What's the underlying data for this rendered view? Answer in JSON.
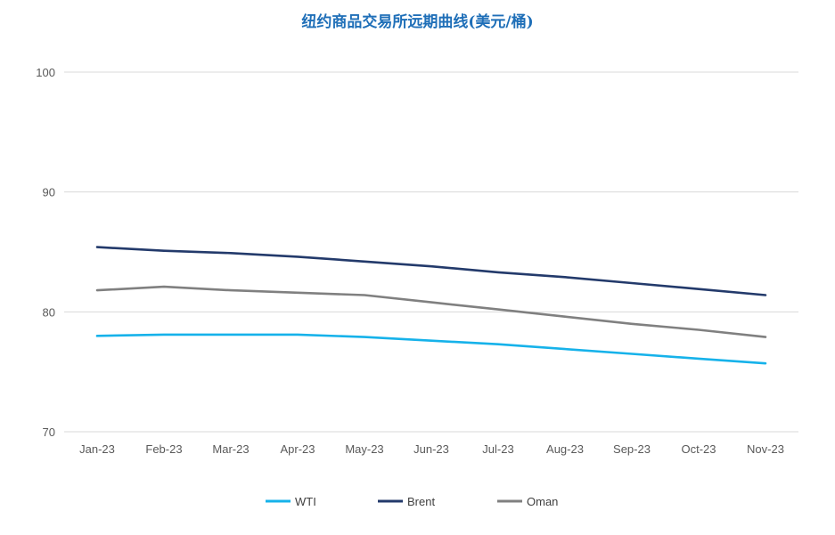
{
  "chart_data": {
    "type": "line",
    "title": "纽约商品交易所远期曲线(美元/桶)",
    "xlabel": "",
    "ylabel": "",
    "categories": [
      "Jan-23",
      "Feb-23",
      "Mar-23",
      "Apr-23",
      "May-23",
      "Jun-23",
      "Jul-23",
      "Aug-23",
      "Sep-23",
      "Oct-23",
      "Nov-23"
    ],
    "ylim": [
      70,
      100
    ],
    "yticks": [
      70,
      80,
      90,
      100
    ],
    "grid": true,
    "legend_position": "bottom",
    "series": [
      {
        "name": "WTI",
        "color": "#16b2ea",
        "values": [
          78.0,
          78.1,
          78.1,
          78.1,
          77.9,
          77.6,
          77.3,
          76.9,
          76.5,
          76.1,
          75.7
        ]
      },
      {
        "name": "Brent",
        "color": "#233a6b",
        "values": [
          85.4,
          85.1,
          84.9,
          84.6,
          84.2,
          83.8,
          83.3,
          82.9,
          82.4,
          81.9,
          81.4
        ]
      },
      {
        "name": "Oman",
        "color": "#808080",
        "values": [
          81.8,
          82.1,
          81.8,
          81.6,
          81.4,
          80.8,
          80.2,
          79.6,
          79.0,
          78.5,
          77.9
        ]
      }
    ]
  }
}
